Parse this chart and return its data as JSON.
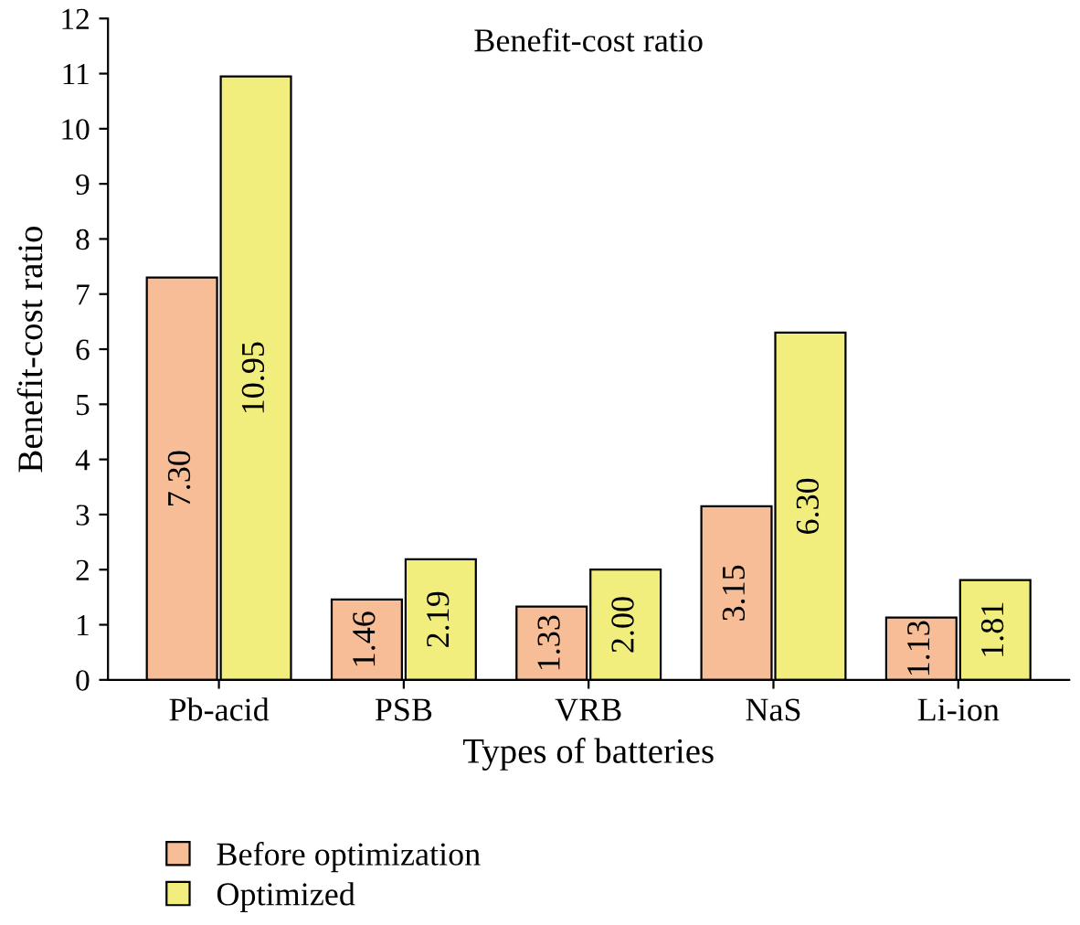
{
  "chart_data": {
    "type": "bar",
    "title": "Benefit-cost ratio",
    "xlabel": "Types of batteries",
    "ylabel": "Benefit-cost ratio",
    "categories": [
      "Pb-acid",
      "PSB",
      "VRB",
      "NaS",
      "Li-ion"
    ],
    "series": [
      {
        "name": "Before optimization",
        "color": "#f7bd96",
        "values": [
          7.3,
          1.46,
          1.33,
          3.15,
          1.13
        ],
        "value_labels": [
          "7.30",
          "1.46",
          "1.33",
          "3.15",
          "1.13"
        ]
      },
      {
        "name": "Optimized",
        "color": "#f2ee7e",
        "values": [
          10.95,
          2.19,
          2.0,
          6.3,
          1.81
        ],
        "value_labels": [
          "10.95",
          "2.19",
          "2.00",
          "6.30",
          "1.81"
        ]
      }
    ],
    "ylim": [
      0,
      12
    ],
    "yticks": [
      0,
      1,
      2,
      3,
      4,
      5,
      6,
      7,
      8,
      9,
      10,
      11,
      12
    ],
    "grid": false,
    "legend": "bottom left"
  }
}
